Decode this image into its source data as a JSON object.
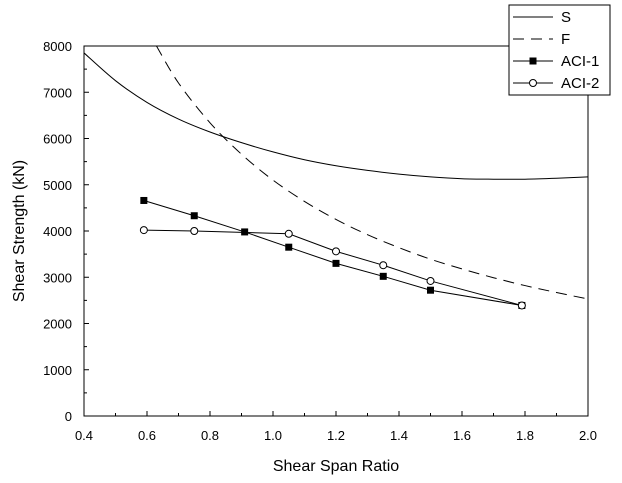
{
  "chart_data": {
    "type": "line",
    "xlabel": "Shear Span Ratio",
    "ylabel": "Shear Strength (kN)",
    "xlim": [
      0.4,
      2.0
    ],
    "ylim": [
      0,
      8000
    ],
    "x_ticks": [
      "0.4",
      "0.6",
      "0.8",
      "1.0",
      "1.2",
      "1.4",
      "1.6",
      "1.8",
      "2.0"
    ],
    "y_ticks": [
      "0",
      "1000",
      "2000",
      "3000",
      "4000",
      "5000",
      "6000",
      "7000",
      "8000"
    ],
    "grid": false,
    "legend_position": "top-right",
    "series": [
      {
        "name": "S",
        "style": "solid",
        "marker": "none",
        "x": [
          0.4,
          0.5,
          0.6,
          0.7,
          0.8,
          0.9,
          1.0,
          1.1,
          1.2,
          1.3,
          1.4,
          1.5,
          1.6,
          1.7,
          1.8,
          1.9,
          2.0
        ],
        "y": [
          7850,
          7250,
          6780,
          6420,
          6140,
          5910,
          5710,
          5540,
          5410,
          5310,
          5230,
          5170,
          5130,
          5120,
          5120,
          5140,
          5170
        ]
      },
      {
        "name": "F",
        "style": "dashed",
        "marker": "none",
        "x": [
          0.63,
          0.7,
          0.8,
          0.9,
          1.0,
          1.1,
          1.2,
          1.3,
          1.4,
          1.5,
          1.6,
          1.7,
          1.8,
          1.9,
          2.0
        ],
        "y": [
          8000,
          7200,
          6340,
          5660,
          5100,
          4640,
          4250,
          3920,
          3640,
          3390,
          3180,
          2990,
          2820,
          2670,
          2530
        ]
      },
      {
        "name": "ACI-1",
        "style": "solid",
        "marker": "square-filled",
        "x": [
          0.59,
          0.75,
          0.91,
          1.05,
          1.2,
          1.35,
          1.5,
          1.79
        ],
        "y": [
          4660,
          4330,
          3980,
          3650,
          3300,
          3020,
          2720,
          2390
        ]
      },
      {
        "name": "ACI-2",
        "style": "solid",
        "marker": "circle-open",
        "x": [
          0.59,
          0.75,
          1.05,
          1.2,
          1.35,
          1.5,
          1.79
        ],
        "y": [
          4020,
          4000,
          3940,
          3560,
          3260,
          2920,
          2390
        ]
      }
    ]
  }
}
